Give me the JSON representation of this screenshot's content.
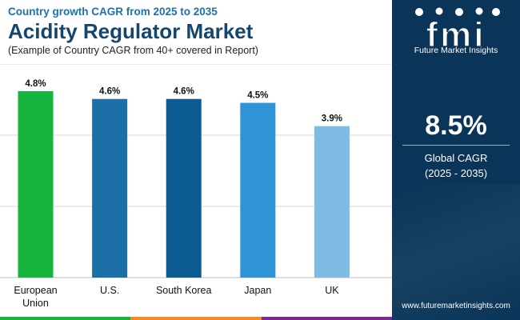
{
  "header": {
    "subtitle_top": "Country growth CAGR from 2025 to 2035",
    "title": "Acidity Regulator Market",
    "subtitle": "(Example of Country CAGR from 40+ covered in Report)"
  },
  "chart_data": {
    "type": "bar",
    "title": "Acidity Regulator Market",
    "categories": [
      "European Union",
      "U.S.",
      "South Korea",
      "Japan",
      "UK"
    ],
    "category_lines": [
      [
        "European",
        "Union"
      ],
      [
        "U.S."
      ],
      [
        "South Korea"
      ],
      [
        "Japan"
      ],
      [
        "UK"
      ]
    ],
    "values": [
      4.8,
      4.6,
      4.6,
      4.5,
      3.9
    ],
    "value_labels": [
      "4.8%",
      "4.6%",
      "4.6%",
      "4.5%",
      "3.9%"
    ],
    "bar_colors": [
      "#17b33f",
      "#1d6fa8",
      "#0c5a92",
      "#2f93d6",
      "#7fbce3"
    ],
    "ylim": [
      0,
      5.5
    ],
    "grid": true,
    "grid_color": "#d9d9d9",
    "legend": "none"
  },
  "sidebar": {
    "logo_letters": "fmi",
    "logo_text": "Future Market Insights",
    "cagr_value": "8.5%",
    "cagr_label_line1": "Global CAGR",
    "cagr_label_line2": "(2025 - 2035)",
    "url": "www.futuremarketinsights.com",
    "background": "#0a3558"
  },
  "bottom_bar_colors": [
    "#17b33f",
    "#f28c22",
    "#7a2a8e"
  ]
}
